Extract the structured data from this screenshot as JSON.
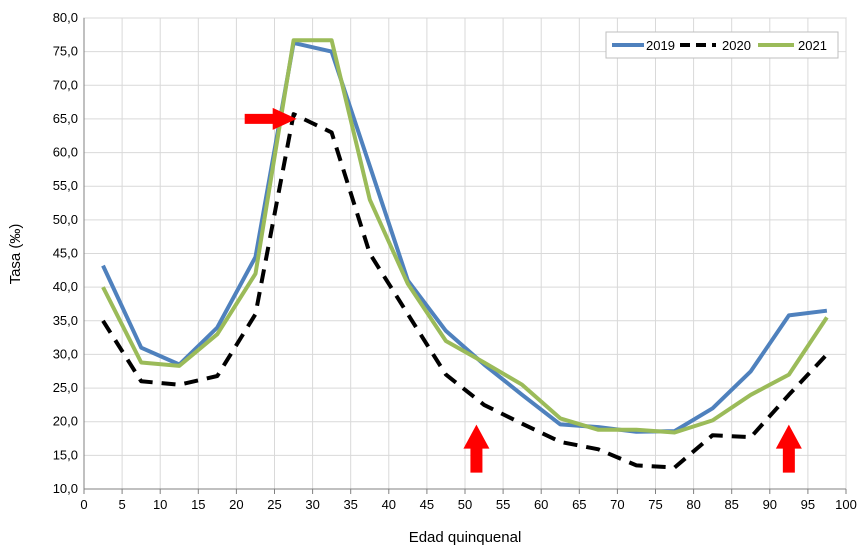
{
  "chart_data": {
    "type": "line",
    "title": "",
    "xlabel": "Edad quinquenal",
    "ylabel": "Tasa (‰)",
    "xlim": [
      0,
      100
    ],
    "ylim": [
      10,
      80
    ],
    "x_ticks": [
      0,
      5,
      10,
      15,
      20,
      25,
      30,
      35,
      40,
      45,
      50,
      55,
      60,
      65,
      70,
      75,
      80,
      85,
      90,
      95,
      100
    ],
    "x_tick_labels": [
      "0",
      "5",
      "10",
      "15",
      "20",
      "25",
      "30",
      "35",
      "40",
      "45",
      "50",
      "55",
      "60",
      "65",
      "70",
      "75",
      "80",
      "85",
      "90",
      "95",
      "100"
    ],
    "y_ticks": [
      10,
      15,
      20,
      25,
      30,
      35,
      40,
      45,
      50,
      55,
      60,
      65,
      70,
      75,
      80
    ],
    "y_tick_labels": [
      "10,0",
      "15,0",
      "20,0",
      "25,0",
      "30,0",
      "35,0",
      "40,0",
      "45,0",
      "50,0",
      "55,0",
      "60,0",
      "65,0",
      "70,0",
      "75,0",
      "80,0"
    ],
    "grid": true,
    "legend_position": "top-right",
    "x": [
      2.5,
      7.5,
      12.5,
      17.5,
      22.5,
      27.5,
      32.5,
      37.5,
      42.5,
      47.5,
      52.5,
      57.5,
      62.5,
      67.5,
      72.5,
      77.5,
      82.5,
      87.5,
      92.5,
      97.5
    ],
    "series": [
      {
        "name": "2019",
        "color": "#4F81BD",
        "style": "solid",
        "values": [
          43.2,
          31.0,
          28.5,
          34.0,
          44.5,
          76.3,
          75.0,
          58.0,
          41.0,
          33.5,
          28.5,
          24.0,
          19.6,
          19.2,
          18.5,
          18.6,
          22.0,
          27.5,
          35.8,
          36.5
        ]
      },
      {
        "name": "2020",
        "color": "#000000",
        "style": "dashed",
        "values": [
          35.0,
          26.0,
          25.5,
          26.8,
          36.0,
          65.7,
          63.0,
          45.0,
          36.0,
          27.0,
          22.5,
          19.7,
          17.0,
          15.9,
          13.5,
          13.2,
          18.0,
          17.7,
          24.0,
          30.0
        ]
      },
      {
        "name": "2021",
        "color": "#9BBB59",
        "style": "solid",
        "values": [
          40.0,
          28.8,
          28.3,
          33.0,
          42.0,
          76.7,
          76.7,
          53.0,
          40.5,
          32.0,
          28.8,
          25.5,
          20.5,
          18.8,
          18.8,
          18.4,
          20.2,
          24.0,
          27.0,
          35.5
        ]
      }
    ],
    "annotations": [
      {
        "type": "arrow",
        "direction": "right",
        "color": "#FF0000",
        "x": 24.5,
        "y": 65.0
      },
      {
        "type": "arrow",
        "direction": "up",
        "color": "#FF0000",
        "x": 51.5,
        "y": 16.0
      },
      {
        "type": "arrow",
        "direction": "up",
        "color": "#FF0000",
        "x": 92.5,
        "y": 16.0
      }
    ]
  }
}
